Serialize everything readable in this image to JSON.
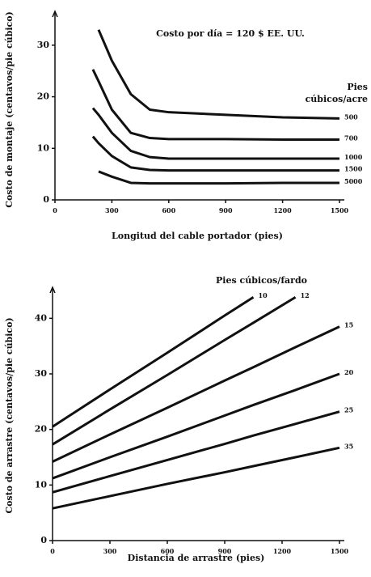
{
  "chart_data": [
    {
      "type": "line",
      "title": "Costo por día = 120 $ EE. UU.",
      "x_label": "Longitud del cable portador (pies)",
      "y_label": "Costo de montaje (centavos/pie cúbico)",
      "legend_title_lines": [
        "Pies",
        "cúbicos/acre"
      ],
      "x": [
        200,
        230,
        300,
        400,
        500,
        600,
        900,
        1200,
        1500
      ],
      "xlim": [
        0,
        1500
      ],
      "xticks": [
        0,
        300,
        600,
        900,
        1200,
        1500
      ],
      "ylim": [
        0,
        35
      ],
      "yticks": [
        0,
        10,
        20,
        30
      ],
      "series": [
        {
          "name": "500",
          "color": "#111111",
          "values": [
            null,
            33,
            27,
            20.5,
            17.5,
            17,
            16.5,
            16,
            15.8
          ]
        },
        {
          "name": "700",
          "color": "#111111",
          "values": [
            25.3,
            23,
            17.5,
            13,
            12,
            11.8,
            11.8,
            11.7,
            11.7
          ]
        },
        {
          "name": "1000",
          "color": "#111111",
          "values": [
            17.8,
            16.5,
            13,
            9.5,
            8.3,
            8,
            8,
            8,
            8
          ]
        },
        {
          "name": "1500",
          "color": "#111111",
          "values": [
            12.3,
            11,
            8.5,
            6.3,
            5.8,
            5.7,
            5.7,
            5.7,
            5.7
          ]
        },
        {
          "name": "5000",
          "color": "#111111",
          "values": [
            null,
            5.5,
            4.5,
            3.3,
            3.2,
            3.2,
            3.2,
            3.3,
            3.3
          ]
        }
      ]
    },
    {
      "type": "line",
      "x_label": "Distancia de arrastre (pies)",
      "y_label": "Costo de arrastre (centavos/pie cúbico)",
      "legend_title_lines": [
        "Pies cúbicos/fardo"
      ],
      "x": [
        0,
        300,
        600,
        900,
        1050,
        1270,
        1500
      ],
      "xlim": [
        0,
        1500
      ],
      "xticks": [
        0,
        300,
        600,
        900,
        1200,
        1500
      ],
      "ylim": [
        0,
        45
      ],
      "yticks": [
        0,
        10,
        20,
        30,
        40
      ],
      "series": [
        {
          "name": "10",
          "color": "#111111",
          "values": [
            20.5,
            27.2,
            33.8,
            40.5,
            43.8,
            null,
            null
          ]
        },
        {
          "name": "12",
          "color": "#111111",
          "values": [
            17.3,
            23.6,
            29.8,
            36.1,
            39.2,
            43.8,
            null
          ]
        },
        {
          "name": "15",
          "color": "#111111",
          "values": [
            14.2,
            19.1,
            23.9,
            28.8,
            31.2,
            34.8,
            38.5
          ]
        },
        {
          "name": "20",
          "color": "#111111",
          "values": [
            11.2,
            15,
            18.7,
            22.5,
            24.4,
            27.1,
            30
          ]
        },
        {
          "name": "25",
          "color": "#111111",
          "values": [
            8.7,
            11.6,
            14.5,
            17.4,
            18.9,
            21,
            23.2
          ]
        },
        {
          "name": "35",
          "color": "#111111",
          "values": [
            5.8,
            8,
            10.2,
            12.3,
            13.4,
            15,
            16.7
          ]
        }
      ]
    }
  ]
}
